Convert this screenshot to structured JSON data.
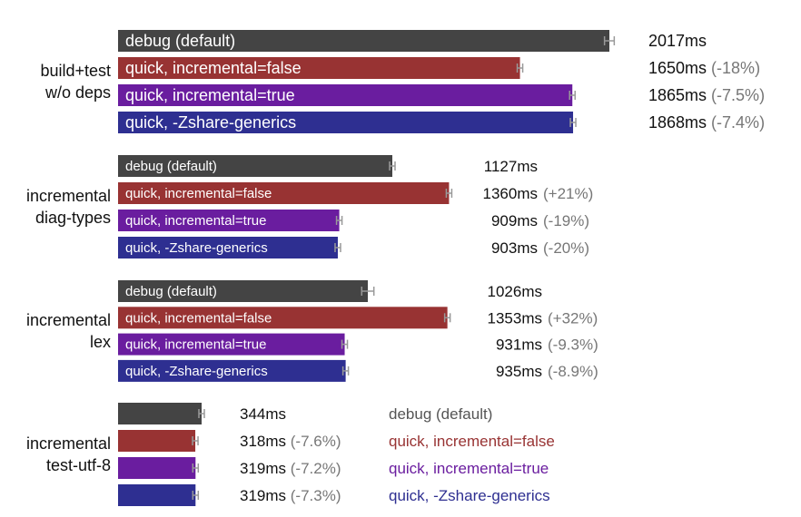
{
  "chart_data": {
    "type": "bar",
    "orientation": "horizontal",
    "legend_placement": "inline",
    "grid": false,
    "colors": {
      "debug": "#444444",
      "quick_incremental_false": "#983333",
      "quick_incremental_true": "#6a1d9f",
      "quick_zshare_generics": "#2e2f91",
      "error_bar": "#999999",
      "delta_text": "#777777"
    },
    "groups": [
      {
        "label_lines": [
          "build+test",
          "w/o deps"
        ],
        "bars": [
          {
            "series": "debug (default)",
            "value": 2017,
            "err": 20,
            "value_label": "2017ms",
            "delta": ""
          },
          {
            "series": "quick, incremental=false",
            "value": 1650,
            "err": 5,
            "value_label": "1650ms",
            "delta": "(-18%)"
          },
          {
            "series": "quick, incremental=true",
            "value": 1865,
            "err": 5,
            "value_label": "1865ms",
            "delta": "(-7.5%)"
          },
          {
            "series": "quick, -Zshare-generics",
            "value": 1868,
            "err": 5,
            "value_label": "1868ms",
            "delta": "(-7.4%)"
          }
        ]
      },
      {
        "label_lines": [
          "incremental",
          "diag-types"
        ],
        "bars": [
          {
            "series": "debug (default)",
            "value": 1127,
            "err": 8,
            "value_label": "1127ms",
            "delta": ""
          },
          {
            "series": "quick, incremental=false",
            "value": 1360,
            "err": 5,
            "value_label": "1360ms",
            "delta": "(+21%)"
          },
          {
            "series": "quick, incremental=true",
            "value": 909,
            "err": 5,
            "value_label": "909ms",
            "delta": "(-19%)"
          },
          {
            "series": "quick, -Zshare-generics",
            "value": 903,
            "err": 5,
            "value_label": "903ms",
            "delta": "(-20%)"
          }
        ]
      },
      {
        "label_lines": [
          "incremental",
          "lex"
        ],
        "bars": [
          {
            "series": "debug (default)",
            "value": 1026,
            "err": 25,
            "value_label": "1026ms",
            "delta": ""
          },
          {
            "series": "quick, incremental=false",
            "value": 1353,
            "err": 8,
            "value_label": "1353ms",
            "delta": "(+32%)"
          },
          {
            "series": "quick, incremental=true",
            "value": 931,
            "err": 3,
            "value_label": "931ms",
            "delta": "(-9.3%)"
          },
          {
            "series": "quick, -Zshare-generics",
            "value": 935,
            "err": 3,
            "value_label": "935ms",
            "delta": "(-8.9%)"
          }
        ]
      },
      {
        "label_lines": [
          "incremental",
          "test-utf-8"
        ],
        "legend_outside": true,
        "bars": [
          {
            "series": "debug (default)",
            "value": 344,
            "err": 8,
            "value_label": "344ms",
            "delta": ""
          },
          {
            "series": "quick, incremental=false",
            "value": 318,
            "err": 2,
            "value_label": "318ms",
            "delta": "(-7.6%)"
          },
          {
            "series": "quick, incremental=true",
            "value": 319,
            "err": 2,
            "value_label": "319ms",
            "delta": "(-7.2%)"
          },
          {
            "series": "quick, -Zshare-generics",
            "value": 319,
            "err": 2,
            "value_label": "319ms",
            "delta": "(-7.3%)"
          }
        ]
      }
    ]
  }
}
